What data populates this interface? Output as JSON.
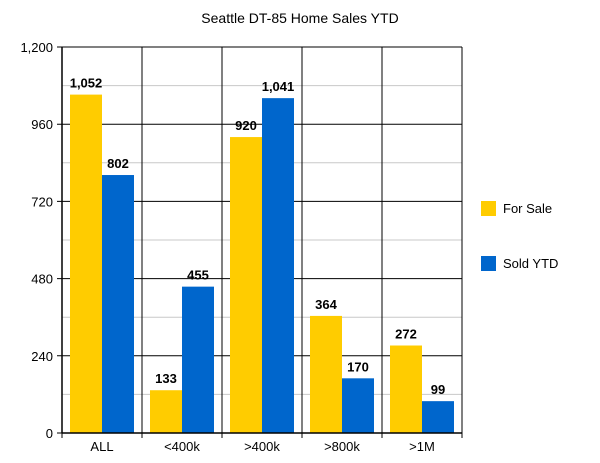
{
  "chart_data": {
    "type": "bar",
    "title": "Seattle DT-85 Home Sales YTD",
    "xlabel": "",
    "ylabel": "",
    "categories": [
      "ALL",
      "<400k",
      ">400k",
      ">800k",
      ">1M"
    ],
    "series": [
      {
        "name": "For Sale",
        "color": "#ffcc00",
        "values": [
          1052,
          133,
          920,
          364,
          272
        ],
        "labels": [
          "1,052",
          "133",
          "920",
          "364",
          "272"
        ]
      },
      {
        "name": "Sold YTD",
        "color": "#0066cc",
        "values": [
          802,
          455,
          1041,
          170,
          99
        ],
        "labels": [
          "802",
          "455",
          "1,041",
          "170",
          "99"
        ]
      }
    ],
    "ylim": [
      0,
      1200
    ],
    "yticks": [
      0,
      240,
      480,
      720,
      960,
      1200
    ],
    "ytick_labels": [
      "0",
      "240",
      "480",
      "720",
      "960",
      "1,200"
    ],
    "grid": true,
    "legend_position": "right"
  }
}
